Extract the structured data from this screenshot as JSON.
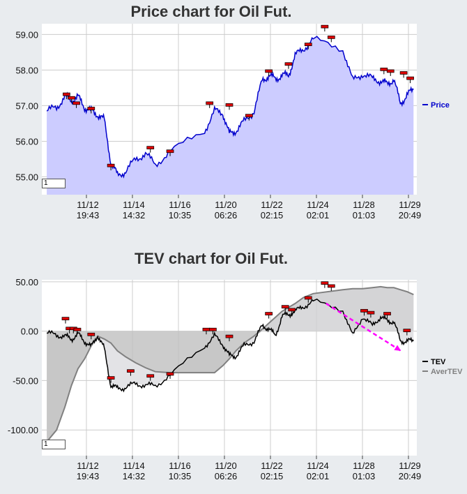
{
  "charts": [
    {
      "title": "Price chart for Oil Fut.",
      "y_ticks": [
        "59.00",
        "58.00",
        "57.00",
        "56.00",
        "55.00"
      ],
      "x_ticks": [
        {
          "date": "11/12",
          "time": "19:43"
        },
        {
          "date": "11/14",
          "time": "14:32"
        },
        {
          "date": "11/16",
          "time": "10:35"
        },
        {
          "date": "11/20",
          "time": "06:26"
        },
        {
          "date": "11/22",
          "time": "02:15"
        },
        {
          "date": "11/24",
          "time": "02:01"
        },
        {
          "date": "11/28",
          "time": "01:03"
        },
        {
          "date": "11/29",
          "time": "20:49"
        }
      ],
      "legend": [
        {
          "name": "Price",
          "color": "#0000cc"
        }
      ],
      "period_input": "1"
    },
    {
      "title": "TEV chart for Oil Fut.",
      "y_ticks": [
        "50.00",
        "0.00",
        "-50.00",
        "-100.00"
      ],
      "x_ticks": [
        {
          "date": "11/12",
          "time": "19:43"
        },
        {
          "date": "11/14",
          "time": "14:32"
        },
        {
          "date": "11/16",
          "time": "10:35"
        },
        {
          "date": "11/20",
          "time": "06:26"
        },
        {
          "date": "11/22",
          "time": "02:15"
        },
        {
          "date": "11/24",
          "time": "02:01"
        },
        {
          "date": "11/28",
          "time": "01:03"
        },
        {
          "date": "11/29",
          "time": "20:49"
        }
      ],
      "legend": [
        {
          "name": "TEV",
          "color": "#000000"
        },
        {
          "name": "AverTEV",
          "color": "#808080"
        }
      ],
      "period_input": "1"
    }
  ],
  "chart_data": [
    {
      "type": "area",
      "title": "Price chart for Oil Fut.",
      "ylim": [
        54.5,
        59.3
      ],
      "grid": true,
      "legend_position": "right",
      "x": [
        "11/11",
        "11/11",
        "11/12",
        "11/12",
        "11/12",
        "11/13",
        "11/13",
        "11/13",
        "11/14",
        "11/14",
        "11/14",
        "11/15",
        "11/15",
        "11/16",
        "11/16",
        "11/17",
        "11/19",
        "11/19",
        "11/20",
        "11/20",
        "11/20",
        "11/21",
        "11/21",
        "11/22",
        "11/22",
        "11/22",
        "11/23",
        "11/23",
        "11/23",
        "11/24",
        "11/24",
        "11/26",
        "11/26",
        "11/27",
        "11/27",
        "11/28",
        "11/28",
        "11/28",
        "11/29",
        "11/29",
        "11/29"
      ],
      "series": [
        {
          "name": "Price",
          "color": "#0000cc",
          "values": [
            56.85,
            56.95,
            57.25,
            57.15,
            57.25,
            56.95,
            56.85,
            56.75,
            56.6,
            55.4,
            55.05,
            55.15,
            55.5,
            55.65,
            55.35,
            55.7,
            56.3,
            56.85,
            56.8,
            56.2,
            56.3,
            56.55,
            56.85,
            57.7,
            57.85,
            57.75,
            57.85,
            57.85,
            58.4,
            58.6,
            58.85,
            58.6,
            57.7,
            57.9,
            57.75,
            57.7,
            57.6,
            57.75,
            57.05,
            57.3,
            57.45
          ]
        }
      ],
      "markers_x": [
        "11/12",
        "11/12",
        "11/12",
        "11/13",
        "11/14",
        "11/16",
        "11/17",
        "11/19",
        "11/20",
        "11/21",
        "11/22",
        "11/23",
        "11/24",
        "11/25",
        "11/25",
        "11/28",
        "11/28",
        "11/29",
        "11/29"
      ],
      "markers_y": [
        57.3,
        57.2,
        57.05,
        56.9,
        55.3,
        55.8,
        55.7,
        57.05,
        57.0,
        56.7,
        57.95,
        58.15,
        58.7,
        59.2,
        58.9,
        58.0,
        57.95,
        57.9,
        57.75
      ]
    },
    {
      "type": "line",
      "title": "TEV chart for Oil Fut.",
      "ylim": [
        -126,
        52
      ],
      "grid": true,
      "legend_position": "right",
      "x": [
        "11/11",
        "11/11",
        "11/12",
        "11/12",
        "11/12",
        "11/13",
        "11/13",
        "11/13",
        "11/14",
        "11/14",
        "11/14",
        "11/15",
        "11/15",
        "11/16",
        "11/16",
        "11/17",
        "11/19",
        "11/19",
        "11/20",
        "11/20",
        "11/20",
        "11/21",
        "11/21",
        "11/22",
        "11/22",
        "11/22",
        "11/23",
        "11/23",
        "11/23",
        "11/24",
        "11/24",
        "11/26",
        "11/26",
        "11/27",
        "11/27",
        "11/28",
        "11/28",
        "11/28",
        "11/29",
        "11/29",
        "11/29"
      ],
      "series": [
        {
          "name": "TEV",
          "color": "#000000",
          "values": [
            -2,
            -4,
            -5,
            -8,
            -3,
            -10,
            -16,
            -4,
            -18,
            -55,
            -58,
            -57,
            -53,
            -55,
            -55,
            -45,
            -15,
            -5,
            -13,
            -25,
            -25,
            -15,
            -10,
            5,
            3,
            -5,
            15,
            17,
            20,
            25,
            30,
            22,
            -5,
            15,
            5,
            15,
            10,
            10,
            -10,
            -10,
            -10
          ]
        },
        {
          "name": "AverTEV",
          "color": "#808080",
          "values": [
            -112,
            -100,
            -77,
            -55,
            -38,
            -28,
            -15,
            -5,
            -8,
            -12,
            -20,
            -26,
            -32,
            -37,
            -41,
            -42,
            -42,
            -42,
            -35,
            -28,
            -20,
            -12,
            -5,
            2,
            8,
            14,
            20,
            24,
            28,
            34,
            38,
            42,
            43,
            43,
            44,
            45,
            44,
            44,
            42,
            40,
            37
          ]
        }
      ],
      "markers_x": [
        "11/12",
        "11/12",
        "11/12",
        "11/12",
        "11/13",
        "11/14",
        "11/15",
        "11/16",
        "11/17",
        "11/19",
        "11/19",
        "11/20",
        "11/22",
        "11/23",
        "11/23",
        "11/24",
        "11/25",
        "11/25",
        "11/27",
        "11/27",
        "11/28",
        "11/29"
      ],
      "markers_y": [
        12,
        2,
        2,
        1,
        -4,
        -48,
        -41,
        -46,
        -44,
        1,
        1,
        -6,
        17,
        24,
        21,
        33,
        48,
        45,
        20,
        18,
        17,
        0
      ],
      "trend_arrow": {
        "color": "#ff00ff",
        "from": [
          "11/25",
          28
        ],
        "to": [
          "11/29",
          -20
        ]
      }
    }
  ]
}
